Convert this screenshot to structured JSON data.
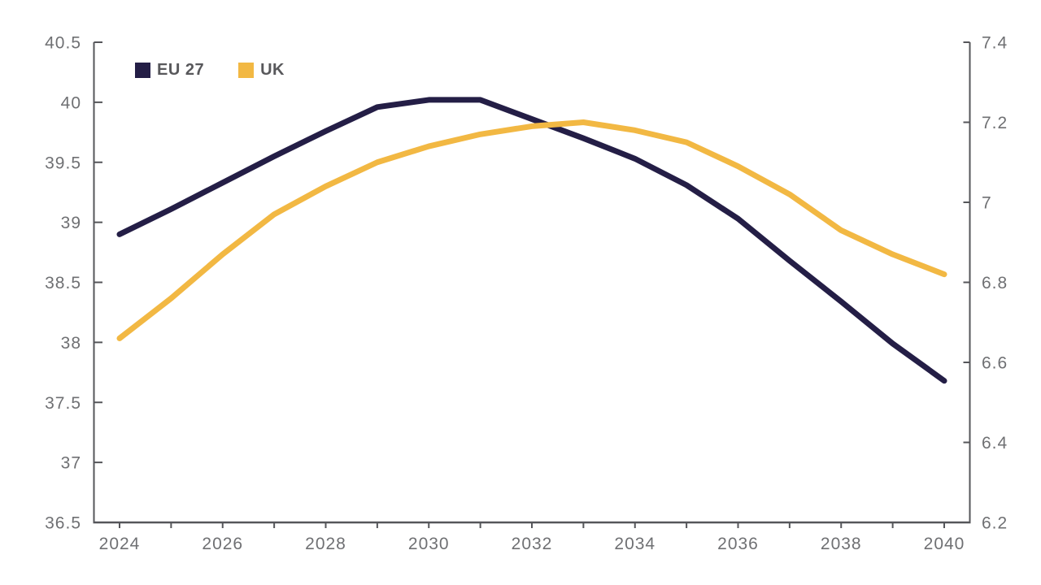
{
  "page": {
    "background": "#ffffff"
  },
  "chart_data": {
    "type": "line",
    "title": "",
    "x": [
      2024,
      2025,
      2026,
      2027,
      2028,
      2029,
      2030,
      2031,
      2032,
      2033,
      2034,
      2035,
      2036,
      2037,
      2038,
      2039,
      2040
    ],
    "x_tick_label_years": [
      2024,
      2026,
      2028,
      2030,
      2032,
      2034,
      2036,
      2038,
      2040
    ],
    "series": [
      {
        "name": "EU 27",
        "axis": "left",
        "color": "#241E46",
        "values": [
          38.9,
          39.11,
          39.33,
          39.55,
          39.76,
          39.96,
          40.02,
          40.02,
          39.86,
          39.7,
          39.53,
          39.31,
          39.03,
          38.68,
          38.34,
          37.99,
          37.68
        ]
      },
      {
        "name": "UK",
        "axis": "right",
        "color": "#F2B843",
        "values": [
          6.66,
          6.76,
          6.87,
          6.97,
          7.04,
          7.1,
          7.14,
          7.17,
          7.19,
          7.2,
          7.18,
          7.15,
          7.09,
          7.02,
          6.93,
          6.87,
          6.82
        ]
      }
    ],
    "left_axis": {
      "min": 36.5,
      "max": 40.5,
      "tick_values": [
        36.5,
        37,
        37.5,
        38,
        38.5,
        39,
        39.5,
        40,
        40.5
      ],
      "tick_labels": [
        "36.5",
        "37",
        "37.5",
        "38",
        "38.5",
        "39",
        "39.5",
        "40",
        "40.5"
      ]
    },
    "right_axis": {
      "min": 6.2,
      "max": 7.4,
      "tick_values": [
        6.2,
        6.4,
        6.6,
        6.8,
        7.0,
        7.2,
        7.4
      ],
      "tick_labels": [
        "6.2",
        "6.4",
        "6.6",
        "6.8",
        "7",
        "7.2",
        "7.4"
      ]
    },
    "legend_position": "top-left",
    "grid": false,
    "colors": {
      "axis_line": "#55565A",
      "tick_label": "#6F7073",
      "legend_text": "#58585B"
    }
  }
}
